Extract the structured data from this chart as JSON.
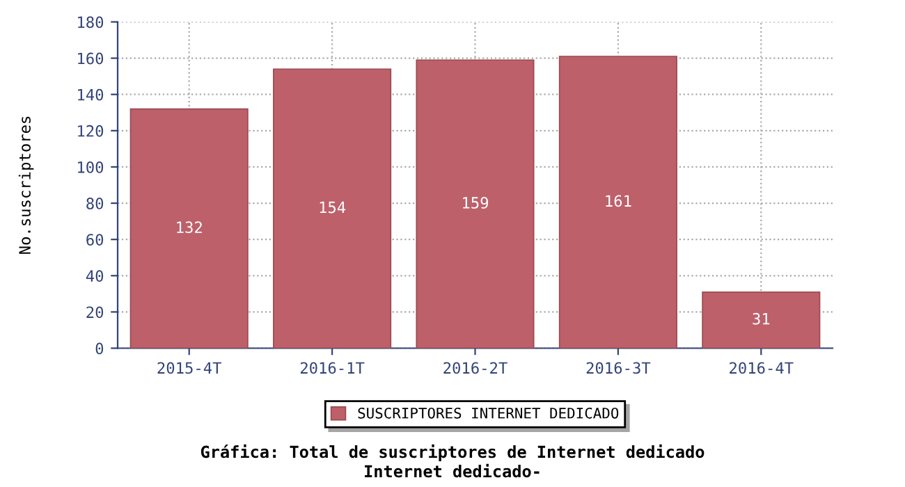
{
  "chart_data": {
    "type": "bar",
    "title": "Gráfica: Total de suscriptores de Internet dedicado",
    "subtitle": "Internet dedicado-",
    "ylabel": "No.suscriptores",
    "categories": [
      "2015-4T",
      "2016-1T",
      "2016-2T",
      "2016-3T",
      "2016-4T"
    ],
    "series": [
      {
        "name": "SUSCRIPTORES INTERNET DEDICADO",
        "color": "#bd606a",
        "values": [
          132,
          154,
          159,
          161,
          31
        ]
      }
    ],
    "ylim": [
      0,
      180
    ],
    "yticks": [
      0,
      20,
      40,
      60,
      80,
      100,
      120,
      140,
      160,
      180
    ],
    "grid": true,
    "legend": "bottom",
    "data_labels": true
  }
}
